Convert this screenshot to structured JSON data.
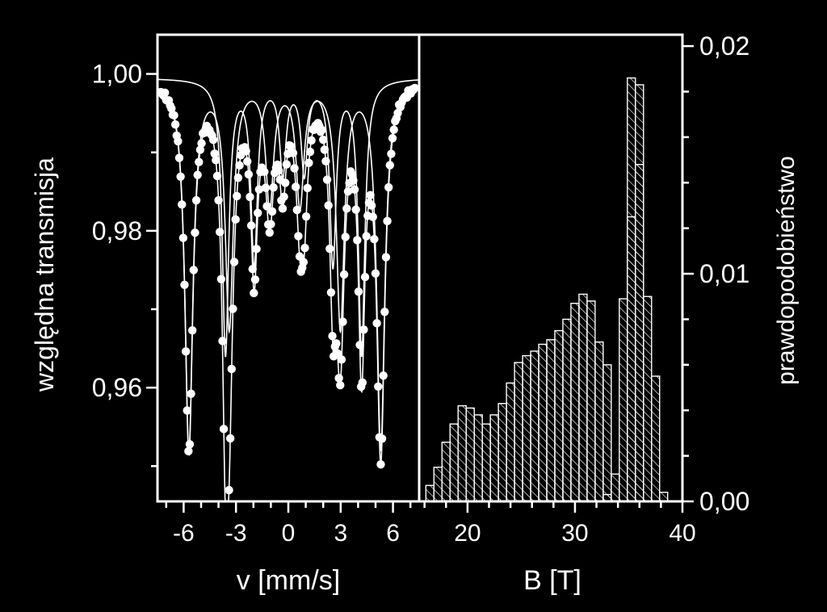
{
  "colors": {
    "background": "#000000",
    "foreground": "#ffffff"
  },
  "chart_data": [
    {
      "type": "scatter",
      "panel": "left",
      "xlabel": "v [mm/s]",
      "ylabel": "względna transmisja",
      "xlim": [
        -7.5,
        7.5
      ],
      "ylim": [
        0.9455,
        1.005
      ],
      "x_ticks": [
        -6,
        -3,
        0,
        3,
        6
      ],
      "x_tick_labels": [
        "-6",
        "-3",
        "0",
        "3",
        "6"
      ],
      "y_ticks": [
        0.96,
        0.98,
        1.0
      ],
      "y_tick_labels": [
        "0,96",
        "0,98",
        "1,00"
      ],
      "fit": {
        "baseline": 0.9995,
        "sextets": [
          {
            "center": -0.2,
            "B_mm_s": 11.0,
            "depth": 0.047,
            "width": 0.55
          },
          {
            "center": 0.3,
            "B_mm_s": 7.8,
            "depth": 0.035,
            "width": 0.45
          }
        ]
      },
      "series": [
        {
          "kind": "points",
          "step": 0.075,
          "x_range": [
            -7.3,
            7.3
          ]
        },
        {
          "kind": "line",
          "role": "fit"
        },
        {
          "kind": "line",
          "role": "component-1"
        },
        {
          "kind": "line",
          "role": "component-2"
        }
      ]
    },
    {
      "type": "bar",
      "panel": "right",
      "xlabel": "B [T]",
      "ylabel": "prawdopodobieństwo",
      "xlim": [
        15.5,
        40
      ],
      "ylim": [
        0,
        0.0205
      ],
      "x_ticks": [
        20,
        30,
        40
      ],
      "x_tick_labels": [
        "20",
        "30",
        "40"
      ],
      "y_ticks": [
        0.0,
        0.01,
        0.02
      ],
      "y_tick_labels": [
        "0,00",
        "0,01",
        "0,02"
      ],
      "bin_width": 0.75,
      "series": [
        {
          "role": "distribution-1",
          "x": [
            16.5,
            17.25,
            18.0,
            18.75,
            19.5,
            20.25,
            21.0,
            21.75,
            22.5,
            23.25,
            24.0,
            24.75,
            25.5,
            26.25,
            27.0,
            27.75,
            28.5,
            29.25,
            30.0,
            30.75,
            31.5,
            32.25,
            33.0
          ],
          "values": [
            0.0007,
            0.0015,
            0.0026,
            0.0034,
            0.0042,
            0.0041,
            0.0038,
            0.0034,
            0.0038,
            0.0043,
            0.0052,
            0.0061,
            0.0064,
            0.0066,
            0.0069,
            0.0071,
            0.0075,
            0.008,
            0.0087,
            0.0091,
            0.0088,
            0.007,
            0.006
          ]
        },
        {
          "role": "distribution-2",
          "x": [
            33.0,
            33.75,
            34.5,
            35.25,
            36.0,
            36.75,
            37.5,
            38.25
          ],
          "values": [
            0.0003,
            0.0012,
            0.0089,
            0.0125,
            0.0148,
            0.009,
            0.0055,
            0.0004
          ]
        },
        {
          "role": "distribution-3",
          "x": [
            35.25,
            36.0
          ],
          "values": [
            0.0186,
            0.0183
          ]
        }
      ]
    }
  ]
}
